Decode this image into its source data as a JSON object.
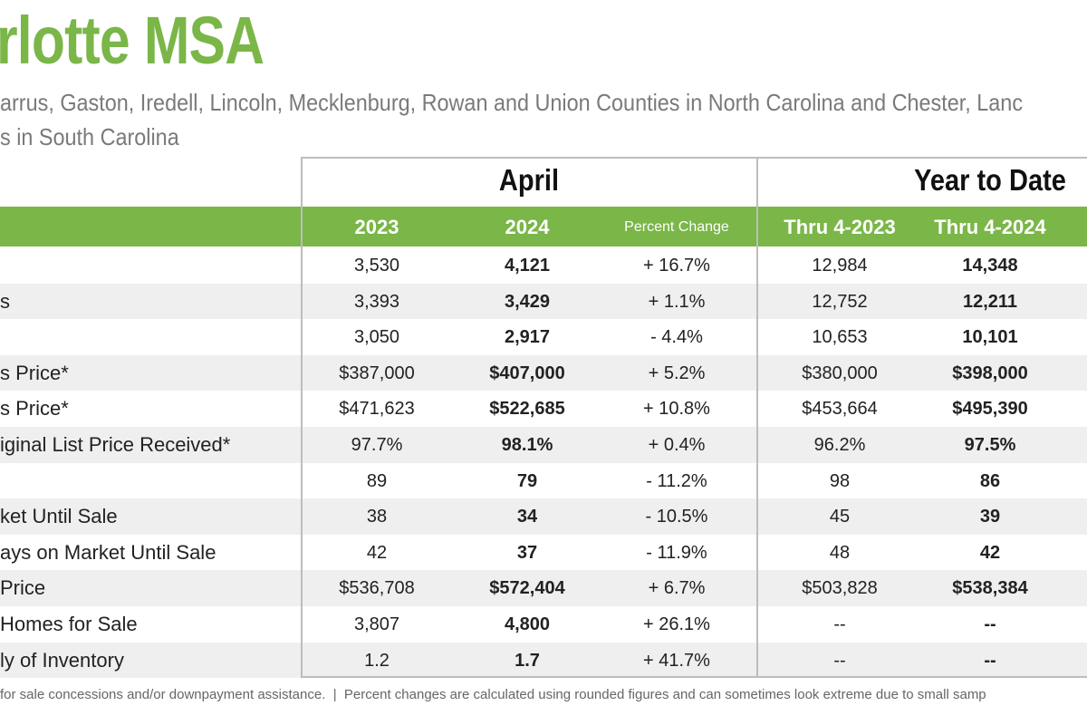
{
  "header": {
    "title": "rlotte MSA",
    "subtitle_lines": [
      "arrus, Gaston, Iredell, Lincoln, Mecklenburg, Rowan and Union Counties in North Carolina and Chester, Lanc",
      "s in South Carolina"
    ]
  },
  "table": {
    "groups": [
      "April",
      "Year to Date"
    ],
    "columns": [
      "2023",
      "2024",
      "Percent Change",
      "Thru 4-2023",
      "Thru 4-2024"
    ],
    "rows": [
      {
        "cells": [
          "3,530",
          "4,121",
          "+ 16.7%",
          "12,984",
          "14,348"
        ]
      },
      {
        "label": "s",
        "cells": [
          "3,393",
          "3,429",
          "+ 1.1%",
          "12,752",
          "12,211"
        ]
      },
      {
        "cells": [
          "3,050",
          "2,917",
          "- 4.4%",
          "10,653",
          "10,101"
        ]
      },
      {
        "label": "s Price*",
        "cells": [
          "$387,000",
          "$407,000",
          "+ 5.2%",
          "$380,000",
          "$398,000"
        ]
      },
      {
        "label": "s Price*",
        "cells": [
          "$471,623",
          "$522,685",
          "+ 10.8%",
          "$453,664",
          "$495,390"
        ]
      },
      {
        "label": "iginal List Price Received*",
        "cells": [
          "97.7%",
          "98.1%",
          "+ 0.4%",
          "96.2%",
          "97.5%"
        ]
      },
      {
        "cells": [
          "89",
          "79",
          "- 11.2%",
          "98",
          "86"
        ]
      },
      {
        "label": "ket Until Sale",
        "cells": [
          "38",
          "34",
          "- 10.5%",
          "45",
          "39"
        ]
      },
      {
        "label": "ays on Market Until Sale",
        "cells": [
          "42",
          "37",
          "- 11.9%",
          "48",
          "42"
        ]
      },
      {
        "label": "Price",
        "cells": [
          "$536,708",
          "$572,404",
          "+ 6.7%",
          "$503,828",
          "$538,384"
        ]
      },
      {
        "label": "Homes for Sale",
        "cells": [
          "3,807",
          "4,800",
          "+ 26.1%",
          "--",
          "--"
        ]
      },
      {
        "label": "ly of Inventory",
        "cells": [
          "1.2",
          "1.7",
          "+ 41.7%",
          "--",
          "--"
        ]
      }
    ]
  },
  "footer": "for sale concessions and/or downpayment assistance.  |  Percent changes are calculated using rounded figures and can sometimes look extreme due to small samp"
}
